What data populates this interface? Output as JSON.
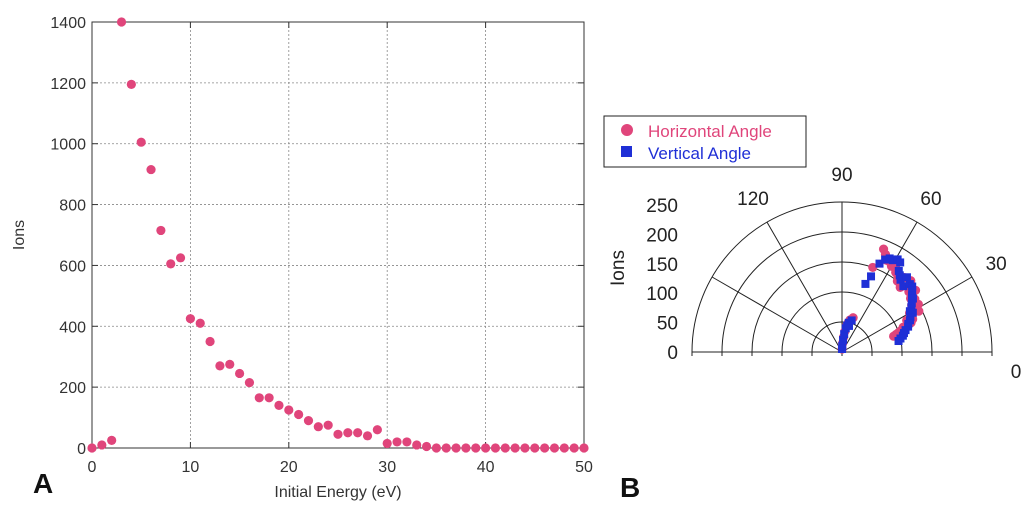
{
  "panels": {
    "a_label": "A",
    "b_label": "B"
  },
  "chart_data": [
    {
      "type": "scatter",
      "panel": "A",
      "xlabel": "Initial Energy (eV)",
      "ylabel": "Ions",
      "xlim": [
        0,
        50
      ],
      "ylim": [
        0,
        1400
      ],
      "xticks": [
        0,
        10,
        20,
        30,
        40,
        50
      ],
      "yticks": [
        0,
        200,
        400,
        600,
        800,
        1000,
        1200,
        1400
      ],
      "grid": true,
      "marker_color": "#e0457b",
      "series": [
        {
          "x": [
            0,
            1,
            2,
            3,
            4,
            5,
            6,
            7,
            8,
            9,
            10,
            11,
            12,
            13,
            14,
            15,
            16,
            17,
            18,
            19,
            20,
            21,
            22,
            23,
            24,
            25,
            26,
            27,
            28,
            29,
            30,
            31,
            32,
            33,
            34,
            35,
            36,
            37,
            38,
            39,
            40,
            41,
            42,
            43,
            44,
            45,
            46,
            47,
            48,
            49,
            50
          ],
          "y": [
            0,
            10,
            25,
            1400,
            1195,
            1005,
            915,
            715,
            605,
            625,
            425,
            410,
            350,
            270,
            275,
            245,
            215,
            165,
            165,
            140,
            125,
            110,
            90,
            70,
            75,
            45,
            50,
            50,
            40,
            60,
            15,
            20,
            20,
            10,
            5,
            0,
            0,
            0,
            0,
            0,
            0,
            0,
            0,
            0,
            0,
            0,
            0,
            0,
            0,
            0,
            0
          ]
        }
      ]
    },
    {
      "type": "scatter",
      "subtype": "polar",
      "panel": "B",
      "ylabel": "Ions",
      "r_ticks": [
        0,
        50,
        100,
        150,
        200,
        250
      ],
      "r_lim": [
        0,
        250
      ],
      "theta_labels": [
        "0",
        "30",
        "60",
        "90",
        "120"
      ],
      "theta_range_deg": [
        0,
        180
      ],
      "legend": "top-left",
      "series": [
        {
          "name": "Horizontal Angle",
          "marker": "circle",
          "color": "#e0457b",
          "theta_deg": [
            88,
            86,
            84,
            82,
            80,
            78,
            76,
            74,
            72,
            70,
            68,
            66,
            64,
            62,
            60,
            58,
            56,
            54,
            52,
            50,
            48,
            46,
            44,
            42,
            40,
            38,
            36,
            34,
            32,
            30,
            28,
            26,
            25,
            24,
            23,
            22,
            21,
            20,
            19,
            18,
            17
          ],
          "r": [
            5,
            15,
            25,
            35,
            45,
            50,
            55,
            55,
            60,
            150,
            185,
            178,
            170,
            170,
            165,
            168,
            160,
            158,
            150,
            162,
            145,
            165,
            155,
            150,
            160,
            145,
            150,
            140,
            150,
            130,
            145,
            120,
            130,
            120,
            125,
            110,
            110,
            105,
            100,
            95,
            90
          ]
        },
        {
          "name": "Vertical Angle",
          "marker": "square",
          "color": "#1f2fd6",
          "theta_deg": [
            89,
            87,
            85,
            83,
            81,
            79,
            77,
            75,
            73,
            71,
            69,
            67,
            65,
            63,
            61,
            59,
            57,
            55,
            53,
            51,
            49,
            47,
            45,
            43,
            41,
            39,
            37,
            35,
            33,
            31,
            29,
            27,
            25,
            23,
            21,
            19,
            17,
            15,
            13,
            11
          ],
          "r": [
            5,
            10,
            20,
            30,
            40,
            45,
            50,
            45,
            55,
            120,
            135,
            160,
            170,
            175,
            175,
            180,
            178,
            165,
            160,
            155,
            165,
            150,
            160,
            160,
            155,
            150,
            148,
            142,
            138,
            132,
            135,
            128,
            125,
            120,
            118,
            112,
            108,
            105,
            100,
            96
          ]
        }
      ]
    }
  ]
}
